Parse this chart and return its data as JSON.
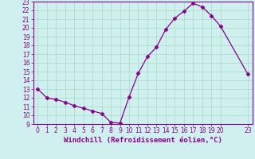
{
  "x": [
    0,
    1,
    2,
    3,
    4,
    5,
    6,
    7,
    8,
    9,
    10,
    11,
    12,
    13,
    14,
    15,
    16,
    17,
    18,
    19,
    20,
    23
  ],
  "y": [
    13,
    12,
    11.8,
    11.5,
    11.1,
    10.8,
    10.5,
    10.2,
    9.2,
    9.1,
    12.1,
    14.8,
    16.7,
    17.8,
    19.8,
    21.1,
    21.9,
    22.8,
    22.4,
    21.4,
    20.2,
    14.7
  ],
  "line_color": "#880088",
  "marker": "D",
  "marker_size": 2.5,
  "xlabel": "Windchill (Refroidissement éolien,°C)",
  "ylim": [
    9,
    23
  ],
  "xlim": [
    -0.5,
    23.5
  ],
  "yticks": [
    9,
    10,
    11,
    12,
    13,
    14,
    15,
    16,
    17,
    18,
    19,
    20,
    21,
    22,
    23
  ],
  "xticks": [
    0,
    1,
    2,
    3,
    4,
    5,
    6,
    7,
    8,
    9,
    10,
    11,
    12,
    13,
    14,
    15,
    16,
    17,
    18,
    19,
    20,
    23
  ],
  "bg_color": "#cff0ee",
  "grid_color": "#aaddcc",
  "tick_label_color": "#880088",
  "axis_label_color": "#880088",
  "xlabel_fontsize": 6.5,
  "tick_fontsize": 5.5,
  "bottom_bar_color": "#880088"
}
